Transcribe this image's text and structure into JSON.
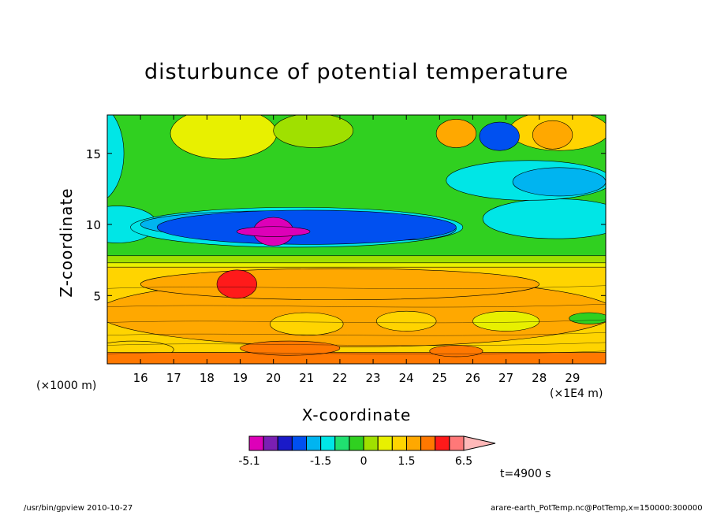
{
  "page": {
    "title": "disturbunce of potential temperature",
    "time_label": "t=4900 s",
    "footer_left": "/usr/bin/gpview   2010-10-27",
    "footer_right": "arare-earth_PotTemp.nc@PotTemp,x=150000:300000"
  },
  "chart_data": {
    "type": "heatmap",
    "title": "disturbunce of potential temperature",
    "xlabel": "X-coordinate",
    "ylabel": "Z-coordinate",
    "x_unit_left": "(×1000 m)",
    "x_unit_right": "(×1E4 m)",
    "xlim": [
      15.0,
      30.0
    ],
    "ylim": [
      0.2,
      17.7
    ],
    "x_ticks": [
      16,
      17,
      18,
      19,
      20,
      21,
      22,
      23,
      24,
      25,
      26,
      27,
      28,
      29
    ],
    "y_ticks": [
      5,
      10,
      15
    ],
    "colorbar": {
      "levels": [
        -5.1,
        -4.1,
        -3.1,
        -2.5,
        -2.0,
        -1.5,
        -1.0,
        -0.5,
        0,
        0.5,
        1.0,
        1.5,
        2.0,
        3.0,
        4.0,
        5.0,
        6.5
      ],
      "colors": [
        "#dd00b8",
        "#7a1fb3",
        "#1a1ac8",
        "#0050f0",
        "#00b4f0",
        "#00e6e6",
        "#20e070",
        "#30d020",
        "#a0e000",
        "#e8f000",
        "#ffd400",
        "#ffa800",
        "#ff7800",
        "#ff1a1a",
        "#ff7878",
        "#ffb8b8"
      ],
      "tick_labels": [
        {
          "value": -5.1,
          "label": "-5.1"
        },
        {
          "value": -1.5,
          "label": "-1.5"
        },
        {
          "value": 0,
          "label": "0"
        },
        {
          "value": 1.5,
          "label": "1.5"
        },
        {
          "value": 6.5,
          "label": "6.5"
        }
      ]
    },
    "field_features": [
      {
        "feature": "warm near-surface layer",
        "x_range": [
          15.0,
          30.0
        ],
        "z_range": [
          0.2,
          7.0
        ],
        "value": 1.8
      },
      {
        "feature": "warm maximum",
        "x": 18.9,
        "z": 5.8,
        "value": 3.5
      },
      {
        "feature": "cold band",
        "x_range": [
          16.5,
          25.5
        ],
        "z_range": [
          8.6,
          11.0
        ],
        "value": -2.3
      },
      {
        "feature": "cold core",
        "x": 20.0,
        "z": 9.5,
        "value": -4.3
      },
      {
        "feature": "cold cell",
        "x": 26.8,
        "z": 16.2,
        "value": -2.3
      },
      {
        "feature": "warm cell",
        "x": 28.4,
        "z": 16.3,
        "value": 1.8
      },
      {
        "feature": "warm cell",
        "x": 25.5,
        "z": 16.4,
        "value": 1.8
      },
      {
        "feature": "cold band",
        "x_range": [
          27.2,
          30.0
        ],
        "z_range": [
          12.0,
          14.0
        ],
        "value": -2.0
      }
    ]
  }
}
